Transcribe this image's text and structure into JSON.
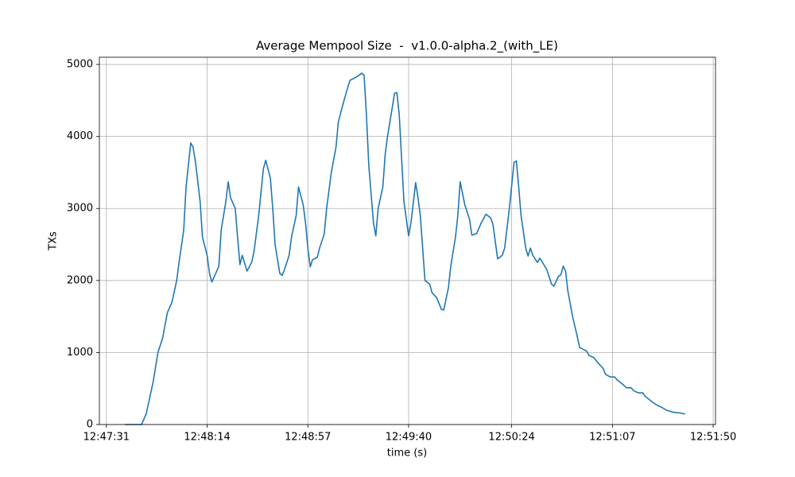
{
  "chart_data": {
    "type": "line",
    "title": "Average Mempool Size  -  v1.0.0-alpha.2_(with_LE)",
    "xlabel": "time (s)",
    "ylabel": "TXs",
    "color": "#1f77b4",
    "grid": true,
    "xlim": [
      "12:47:28",
      "12:51:51"
    ],
    "xticks": [
      "12:47:31",
      "12:48:14",
      "12:48:57",
      "12:49:40",
      "12:50:24",
      "12:51:07",
      "12:51:50"
    ],
    "ylim": [
      0,
      5100
    ],
    "yticks": [
      0,
      1000,
      2000,
      3000,
      4000,
      5000
    ],
    "x": [
      "12:47:39",
      "12:47:46",
      "12:47:48",
      "12:47:51",
      "12:47:53",
      "12:47:55",
      "12:47:57",
      "12:47:59",
      "12:48:01",
      "12:48:02",
      "12:48:04",
      "12:48:05",
      "12:48:07",
      "12:48:08",
      "12:48:09",
      "12:48:11",
      "12:48:12",
      "12:48:14",
      "12:48:15",
      "12:48:16",
      "12:48:17",
      "12:48:19",
      "12:48:20",
      "12:48:22",
      "12:48:23",
      "12:48:24",
      "12:48:26",
      "12:48:27",
      "12:48:28",
      "12:48:29",
      "12:48:31",
      "12:48:33",
      "12:48:34",
      "12:48:36",
      "12:48:38",
      "12:48:39",
      "12:48:41",
      "12:48:42",
      "12:48:43",
      "12:48:45",
      "12:48:46",
      "12:48:47",
      "12:48:49",
      "12:48:50",
      "12:48:52",
      "12:48:53",
      "12:48:55",
      "12:48:56",
      "12:48:57",
      "12:48:58",
      "12:48:59",
      "12:49:01",
      "12:49:02",
      "12:49:04",
      "12:49:05",
      "12:49:07",
      "12:49:09",
      "12:49:10",
      "12:49:12",
      "12:49:14",
      "12:49:15",
      "12:49:18",
      "12:49:20",
      "12:49:21",
      "12:49:22",
      "12:49:23",
      "12:49:25",
      "12:49:26",
      "12:49:27",
      "12:49:29",
      "12:49:30",
      "12:49:31",
      "12:49:33",
      "12:49:34",
      "12:49:35",
      "12:49:36",
      "12:49:37",
      "12:49:38",
      "12:49:40",
      "12:49:41",
      "12:49:43",
      "12:49:44",
      "12:49:45",
      "12:49:47",
      "12:49:49",
      "12:49:50",
      "12:49:52",
      "12:49:54",
      "12:49:55",
      "12:49:57",
      "12:49:58",
      "12:50:00",
      "12:50:01",
      "12:50:02",
      "12:50:04",
      "12:50:06",
      "12:50:07",
      "12:50:09",
      "12:50:11",
      "12:50:13",
      "12:50:15",
      "12:50:16",
      "12:50:18",
      "12:50:20",
      "12:50:21",
      "12:50:23",
      "12:50:25",
      "12:50:26",
      "12:50:27",
      "12:50:28",
      "12:50:30",
      "12:50:31",
      "12:50:32",
      "12:50:33",
      "12:50:35",
      "12:50:36",
      "12:50:37",
      "12:50:39",
      "12:50:40",
      "12:50:41",
      "12:50:42",
      "12:50:44",
      "12:50:45",
      "12:50:46",
      "12:50:47",
      "12:50:48",
      "12:50:50",
      "12:50:52",
      "12:50:53",
      "12:50:56",
      "12:50:57",
      "12:50:59",
      "12:51:01",
      "12:51:03",
      "12:51:04",
      "12:51:06",
      "12:51:08",
      "12:51:09",
      "12:51:11",
      "12:51:13",
      "12:51:15",
      "12:51:16",
      "12:51:18",
      "12:51:20",
      "12:51:21",
      "12:51:23",
      "12:51:25",
      "12:51:26",
      "12:51:28",
      "12:51:30",
      "12:51:31",
      "12:51:33",
      "12:51:36",
      "12:51:38"
    ],
    "values": [
      0,
      0,
      150,
      600,
      1000,
      1200,
      1550,
      1700,
      2000,
      2250,
      2700,
      3300,
      3910,
      3850,
      3650,
      3100,
      2600,
      2350,
      2100,
      1980,
      2050,
      2200,
      2700,
      3100,
      3370,
      3150,
      3000,
      2600,
      2220,
      2350,
      2130,
      2250,
      2400,
      2900,
      3550,
      3670,
      3420,
      3000,
      2500,
      2100,
      2070,
      2150,
      2350,
      2600,
      2900,
      3300,
      3050,
      2800,
      2450,
      2190,
      2290,
      2320,
      2450,
      2650,
      3000,
      3500,
      3850,
      4200,
      4450,
      4680,
      4780,
      4830,
      4880,
      4850,
      4300,
      3600,
      2800,
      2620,
      3000,
      3300,
      3750,
      4000,
      4400,
      4600,
      4610,
      4300,
      3700,
      3100,
      2620,
      2800,
      3360,
      3150,
      2900,
      2000,
      1950,
      1830,
      1760,
      1600,
      1590,
      1900,
      2200,
      2600,
      2900,
      3370,
      3050,
      2850,
      2630,
      2650,
      2800,
      2920,
      2870,
      2780,
      2300,
      2350,
      2450,
      3000,
      3640,
      3660,
      3300,
      2900,
      2450,
      2340,
      2450,
      2350,
      2250,
      2310,
      2260,
      2150,
      2050,
      1950,
      1920,
      2060,
      2080,
      2200,
      2130,
      1850,
      1500,
      1220,
      1070,
      1020,
      960,
      930,
      850,
      780,
      700,
      660,
      660,
      620,
      570,
      510,
      510,
      470,
      440,
      440,
      390,
      340,
      290,
      270,
      240,
      200,
      190,
      170,
      160,
      145
    ]
  }
}
